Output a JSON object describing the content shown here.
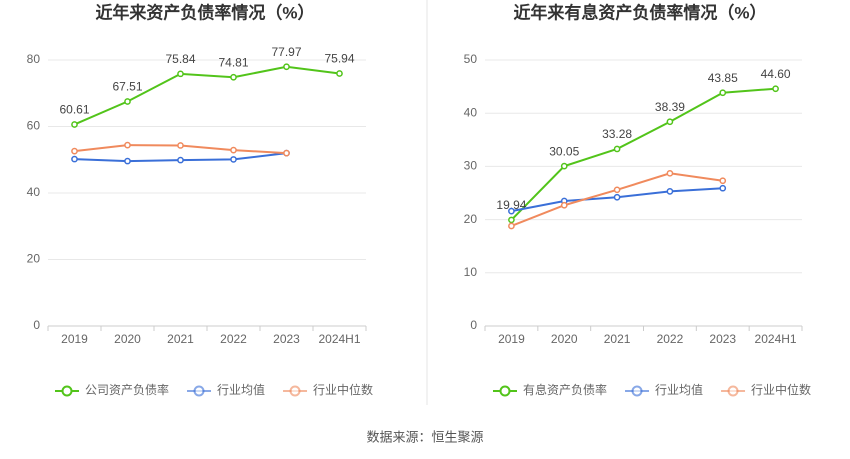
{
  "chart_data": [
    {
      "type": "line",
      "title": "近年来资产负债率情况（%）",
      "categories": [
        "2019",
        "2020",
        "2021",
        "2022",
        "2023",
        "2024H1"
      ],
      "ylim": [
        0,
        80
      ],
      "yticks": [
        0,
        20,
        40,
        60,
        80
      ],
      "grid": true,
      "legend": "bottom",
      "series": [
        {
          "name": "公司资产负债率",
          "color": "#52c41a",
          "values": [
            60.61,
            67.51,
            75.84,
            74.81,
            77.97,
            75.94
          ],
          "value_labels": [
            "60.61",
            "67.51",
            "75.84",
            "74.81",
            "77.97",
            "75.94"
          ]
        },
        {
          "name": "行业均值",
          "color": "#3a6fd8",
          "values": [
            50.2,
            49.6,
            49.9,
            50.1,
            52.0,
            null
          ]
        },
        {
          "name": "行业中位数",
          "color": "#f08a5d",
          "values": [
            52.6,
            54.4,
            54.3,
            52.9,
            52.0,
            null
          ]
        }
      ]
    },
    {
      "type": "line",
      "title": "近年来有息资产负债率情况（%）",
      "categories": [
        "2019",
        "2020",
        "2021",
        "2022",
        "2023",
        "2024H1"
      ],
      "ylim": [
        0,
        50
      ],
      "yticks": [
        0,
        10,
        20,
        30,
        40,
        50
      ],
      "grid": true,
      "legend": "bottom",
      "series": [
        {
          "name": "有息资产负债率",
          "color": "#52c41a",
          "values": [
            19.94,
            30.05,
            33.28,
            38.39,
            43.85,
            44.6
          ],
          "value_labels": [
            "19.94",
            "30.05",
            "33.28",
            "38.39",
            "43.85",
            "44.60"
          ]
        },
        {
          "name": "行业均值",
          "color": "#3a6fd8",
          "values": [
            21.6,
            23.5,
            24.2,
            25.3,
            25.9,
            null
          ]
        },
        {
          "name": "行业中位数",
          "color": "#f08a5d",
          "values": [
            18.8,
            22.7,
            25.6,
            28.7,
            27.3,
            null
          ]
        }
      ]
    }
  ],
  "source": "数据来源：恒生聚源"
}
